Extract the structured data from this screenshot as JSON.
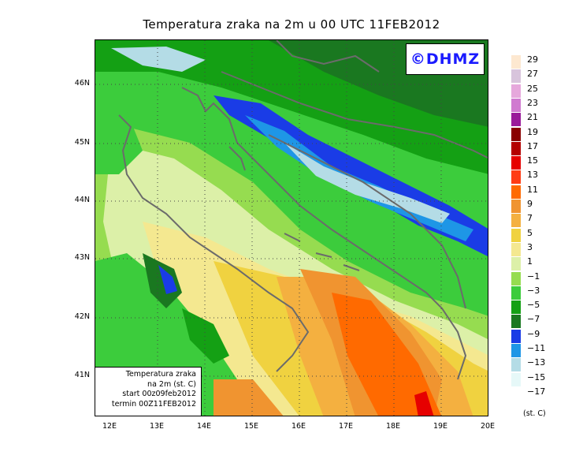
{
  "title": "Temperatura zraka na 2m u 00 UTC 11FEB2012",
  "logo": "©DHMZ",
  "info_box": {
    "line1": "Temperatura zraka",
    "line2": "na 2m (st. C)",
    "line3": "start 00z09feb2012",
    "line4": "termin 00Z11FEB2012"
  },
  "lat_labels": [
    "46N",
    "45N",
    "44N",
    "43N",
    "42N",
    "41N"
  ],
  "lon_labels": [
    "12E",
    "13E",
    "14E",
    "15E",
    "16E",
    "17E",
    "18E",
    "19E",
    "20E"
  ],
  "legend": {
    "unit": "(st. C)",
    "labels": [
      "29",
      "27",
      "25",
      "23",
      "21",
      "19",
      "17",
      "15",
      "13",
      "11",
      "9",
      "7",
      "5",
      "3",
      "1",
      "−1",
      "−3",
      "−5",
      "−7",
      "−9",
      "−11",
      "−13",
      "−15",
      "−17"
    ],
    "colors": [
      "#fde8d0",
      "#d8c4dc",
      "#e6a8dc",
      "#d07ad0",
      "#9a1a9a",
      "#8a0000",
      "#b40000",
      "#e60000",
      "#ff3c14",
      "#ff6a00",
      "#f09430",
      "#f4b040",
      "#f0d240",
      "#f4e890",
      "#dcf0a8",
      "#96dc50",
      "#3ccc3c",
      "#14a014",
      "#1a7820",
      "#1a3ce6",
      "#1e96e6",
      "#b4dce6",
      "#e6f8f8",
      "#ffffff"
    ]
  },
  "colors": {
    "coast": "#6b6b6b",
    "grid": "#444444"
  }
}
